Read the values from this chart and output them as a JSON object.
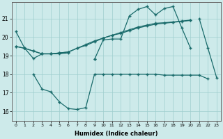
{
  "xlabel": "Humidex (Indice chaleur)",
  "x": [
    0,
    1,
    2,
    3,
    4,
    5,
    6,
    7,
    8,
    9,
    10,
    11,
    12,
    13,
    14,
    15,
    16,
    17,
    18,
    19,
    20,
    21,
    22,
    23
  ],
  "y1": [
    20.3,
    19.4,
    null,
    null,
    null,
    null,
    null,
    null,
    null,
    null,
    null,
    null,
    null,
    null,
    null,
    null,
    null,
    null,
    null,
    null,
    null,
    null,
    null,
    null
  ],
  "y2": [
    null,
    19.4,
    18.85,
    19.1,
    19.1,
    19.1,
    19.15,
    null,
    null,
    18.8,
    19.85,
    19.9,
    19.9,
    21.15,
    21.5,
    21.65,
    21.2,
    21.55,
    21.65,
    20.5,
    19.4,
    null,
    null,
    null
  ],
  "y3": [
    null,
    null,
    null,
    null,
    null,
    null,
    null,
    null,
    null,
    null,
    null,
    null,
    null,
    null,
    null,
    null,
    null,
    null,
    null,
    null,
    null,
    21.0,
    19.4,
    17.8
  ],
  "y4_straight1": [
    19.5,
    19.4,
    19.25,
    19.1,
    19.1,
    19.15,
    19.2,
    19.4,
    19.55,
    19.75,
    19.95,
    20.1,
    20.25,
    20.4,
    20.55,
    20.65,
    20.75,
    20.78,
    20.82,
    20.87,
    20.92,
    null,
    null,
    null
  ],
  "y4_straight2": [
    19.5,
    19.4,
    19.25,
    19.1,
    19.1,
    19.15,
    19.2,
    19.4,
    19.6,
    19.8,
    19.95,
    20.1,
    20.2,
    20.35,
    20.5,
    20.6,
    20.7,
    20.75,
    20.8,
    20.85,
    20.9,
    null,
    null,
    null
  ],
  "y5": [
    null,
    null,
    18.0,
    17.2,
    17.05,
    16.5,
    16.15,
    16.1,
    16.2,
    18.0,
    18.0,
    18.0,
    18.0,
    18.0,
    18.0,
    18.0,
    18.0,
    17.95,
    17.95,
    17.95,
    17.95,
    17.95,
    17.75,
    null
  ],
  "ylim": [
    15.5,
    21.9
  ],
  "yticks": [
    16,
    17,
    18,
    19,
    20,
    21
  ],
  "xticks": [
    0,
    1,
    2,
    3,
    4,
    5,
    6,
    7,
    8,
    9,
    10,
    11,
    12,
    13,
    14,
    15,
    16,
    17,
    18,
    19,
    20,
    21,
    22,
    23
  ],
  "color": "#1a6b6b",
  "bg_color": "#cdeaea",
  "grid_color": "#9ecece"
}
